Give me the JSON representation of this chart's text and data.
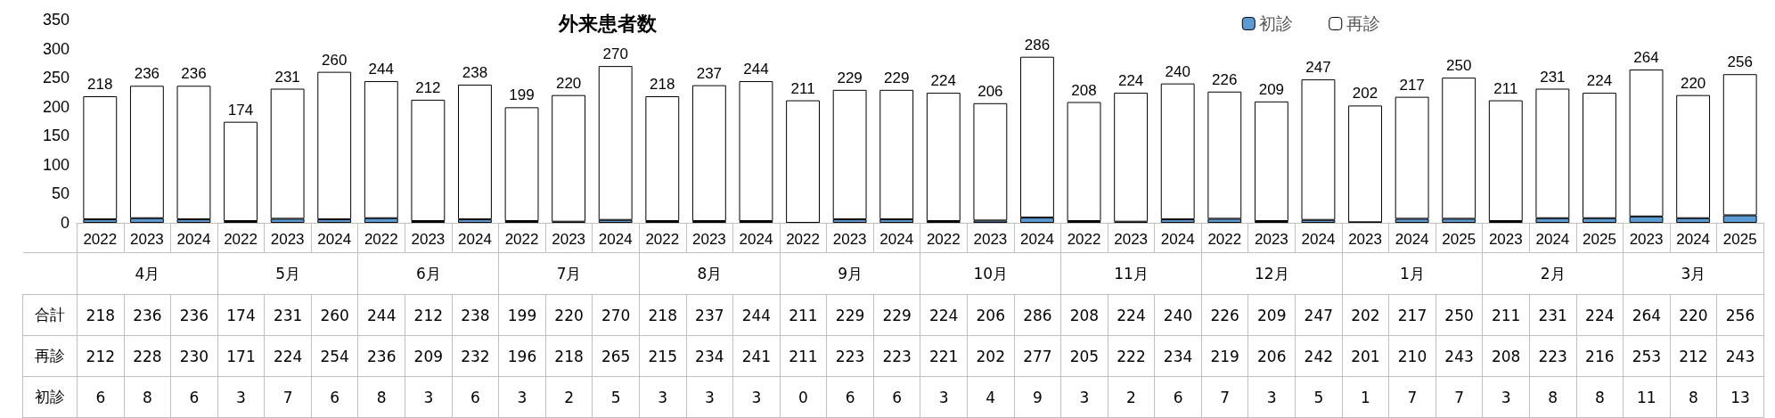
{
  "chart_data": {
    "type": "bar",
    "title": "外来患者数",
    "stacked": true,
    "data_labels": true,
    "legend": "top right",
    "grid": false,
    "categories": [
      "2022",
      "2023",
      "2024",
      "2022",
      "2023",
      "2024",
      "2022",
      "2023",
      "2024",
      "2022",
      "2023",
      "2024",
      "2022",
      "2023",
      "2024",
      "2022",
      "2023",
      "2024",
      "2022",
      "2023",
      "2024",
      "2022",
      "2023",
      "2024",
      "2022",
      "2023",
      "2024",
      "2023",
      "2024",
      "2025",
      "2023",
      "2024",
      "2025",
      "2023",
      "2024",
      "2025"
    ],
    "annotations": [
      "4月",
      "5月",
      "6月",
      "7月",
      "8月",
      "9月",
      "10月",
      "11月",
      "12月",
      "1月",
      "2月",
      "3月",
      "合計"
    ],
    "ylim": [
      0,
      350
    ],
    "yticks": [
      0,
      50,
      100,
      150,
      200,
      250,
      300,
      350
    ],
    "series": [
      {
        "name": "初診",
        "color": "#5b9bd5",
        "values": [
          6,
          8,
          6,
          3,
          7,
          6,
          8,
          3,
          6,
          3,
          2,
          5,
          3,
          3,
          3,
          0,
          6,
          6,
          3,
          4,
          9,
          3,
          2,
          6,
          7,
          3,
          5,
          1,
          7,
          7,
          3,
          8,
          8,
          11,
          8,
          13
        ]
      },
      {
        "name": "再診",
        "color": "#ffffff",
        "values": [
          212,
          228,
          230,
          171,
          224,
          254,
          236,
          209,
          232,
          196,
          218,
          265,
          215,
          234,
          241,
          211,
          223,
          223,
          221,
          202,
          277,
          205,
          222,
          234,
          219,
          206,
          242,
          201,
          210,
          243,
          208,
          223,
          216,
          253,
          212,
          243
        ]
      }
    ],
    "totals": [
      "218",
      "236",
      "236",
      "174",
      "231",
      "260",
      "244",
      "212",
      "238",
      "199",
      "220",
      "270",
      "218",
      "237",
      "244",
      "211",
      "229",
      "229",
      "224",
      "206",
      "286",
      "208",
      "224",
      "240",
      "226",
      "209",
      "247",
      "202",
      "217",
      "250",
      "211",
      "231",
      "224",
      "264",
      "220",
      "256"
    ]
  }
}
